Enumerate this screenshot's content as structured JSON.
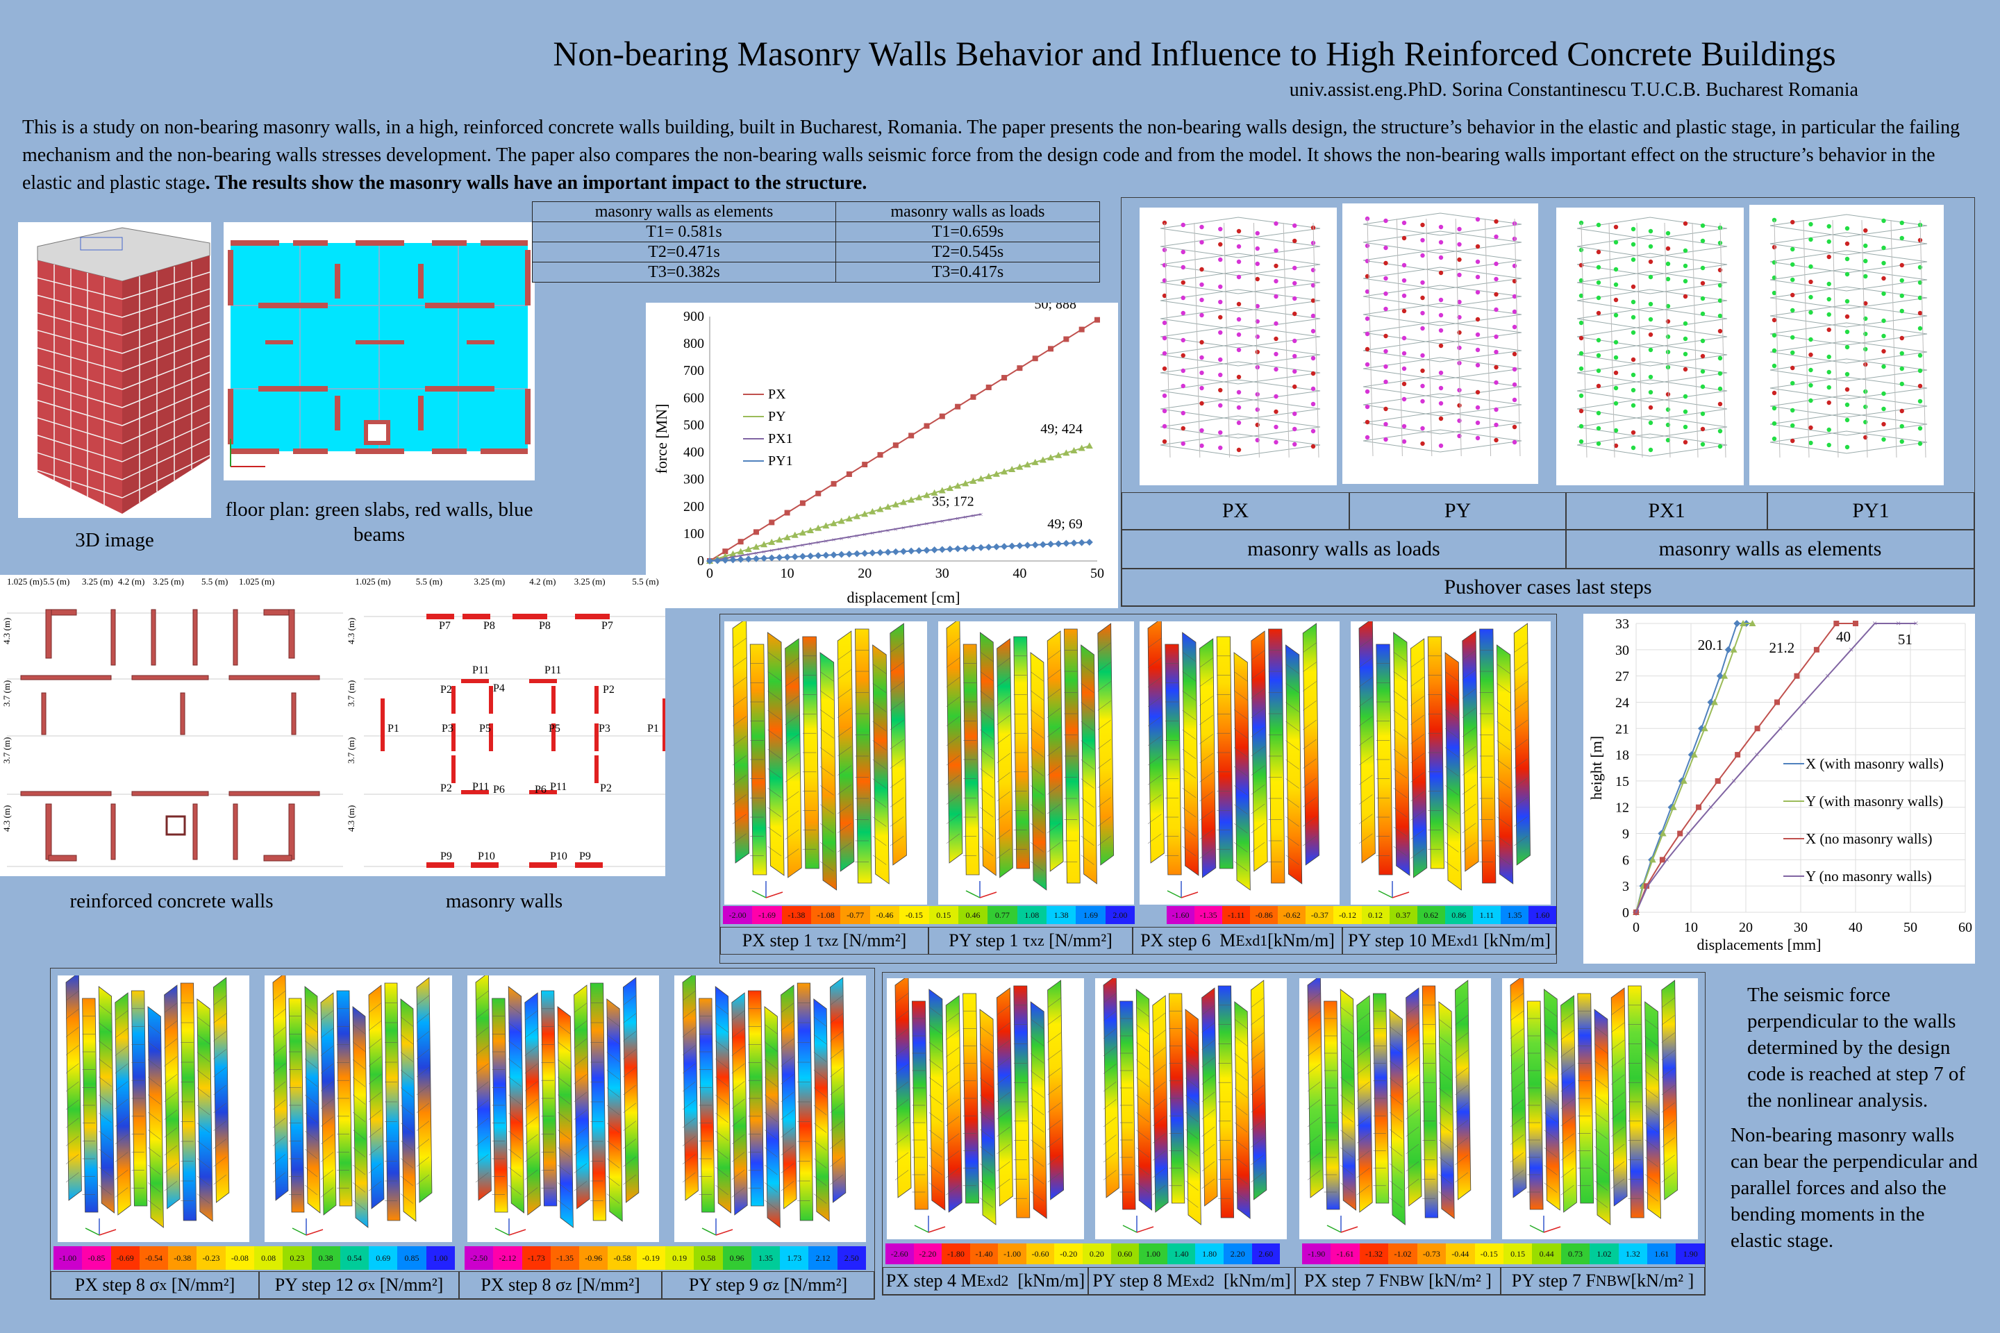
{
  "header": {
    "title": "Non-bearing Masonry Walls Behavior and Influence to High Reinforced Concrete Buildings",
    "author": "univ.assist.eng.PhD.  Sorina Constantinescu   T.U.C.B. Bucharest   Romania"
  },
  "abstract": {
    "text": "This is a study on non-bearing masonry walls, in a high, reinforced concrete walls building, built in Bucharest, Romania. The paper presents the non-bearing walls design, the structure’s behavior in the elastic and plastic stage, in particular the failing mechanism and the non-bearing walls stresses development. The paper also compares the non-bearing walls seismic force from the design code and from the model. It shows the non-bearing walls important effect on the structure’s behavior in the elastic and plastic stage",
    "bold": ". The results show the masonry walls have an important impact to the structure."
  },
  "figures": {
    "image3d_caption": "3D image",
    "floorplan_caption": "floor plan: green slabs, red walls, blue beams",
    "rc_walls_caption": "reinforced concrete walls",
    "masonry_walls_caption": "masonry walls"
  },
  "plan_dims": [
    "1.025 (m)",
    "5.5 (m)",
    "3.25 (m)",
    "4.2 (m)",
    "3.25 (m)",
    "5.5 (m)",
    "1.025 (m)"
  ],
  "plan_dims_masonry": [
    "1.025 (m)",
    "5.5 (m)",
    "3.25 (m)",
    "4.2 (m)",
    "3.25 (m)",
    "5.5 (m)"
  ],
  "plan_dims_vertical": [
    "4.3 (m)",
    "3.7 (m)",
    "3.7 (m)",
    "4.3 (m)"
  ],
  "masonry_labels": [
    "P7",
    "P8",
    "P8",
    "P7",
    "P11",
    "P11",
    "P2",
    "P4",
    "P2",
    "P1",
    "P3",
    "P5",
    "P5",
    "P3",
    "P1",
    "P2",
    "P11",
    "P6",
    "P6",
    "P11",
    "P2",
    "P9",
    "P10",
    "P10",
    "P9"
  ],
  "period_table": {
    "headers": [
      "masonry walls as elements",
      "masonry walls as loads"
    ],
    "rows": [
      [
        "T1= 0.581s",
        "T1=0.659s"
      ],
      [
        "T2=0.471s",
        "T2=0.545s"
      ],
      [
        "T3=0.382s",
        "T3=0.417s"
      ]
    ]
  },
  "pushover_labels": {
    "cases": [
      "PX",
      "PY",
      "PX1",
      "PY1"
    ],
    "groups": [
      "masonry  walls as loads",
      "masonry  walls as elements"
    ],
    "footer": "Pushover cases last steps"
  },
  "row1_captions": [
    "PX step 1 τxz [N/mm²]",
    "PY step 1 τxz [N/mm²]",
    "PX step 6  MExd1[kNm/m]",
    "PY step 10 MExd1 [kNm/m]"
  ],
  "row2a_captions": [
    "PX step 8 σx [N/mm²]",
    "PY step 12 σx [N/mm²]",
    "PX step 8 σz [N/mm²]",
    "PY step 9 σz [N/mm²]"
  ],
  "row2b_captions": [
    "PX step 4 MExd2  [kNm/m]",
    "PY step 8 MExd2  [kNm/m]",
    "PX step 7 FNBW [kN/m² ]",
    "PY step 7 FNBW[kN/m² ]"
  ],
  "scale_tau": [
    "-2.00",
    "-1.69",
    "-1.38",
    "-1.08",
    "-0.77",
    "-0.46",
    "-0.15",
    "0.15",
    "0.46",
    "0.77",
    "1.08",
    "1.38",
    "1.69",
    "2.00"
  ],
  "scale_m1": [
    "-1.60",
    "-1.35",
    "-1.11",
    "-0.86",
    "-0.62",
    "-0.37",
    "-0.12",
    "0.12",
    "0.37",
    "0.62",
    "0.86",
    "1.11",
    "1.35",
    "1.60"
  ],
  "scale_sx": [
    "-1.00",
    "-0.85",
    "-0.69",
    "-0.54",
    "-0.38",
    "-0.23",
    "-0.08",
    "0.08",
    "0.23",
    "0.38",
    "0.54",
    "0.69",
    "0.85",
    "1.00"
  ],
  "scale_sz": [
    "-2.50",
    "-2.12",
    "-1.73",
    "-1.35",
    "-0.96",
    "-0.58",
    "-0.19",
    "0.19",
    "0.58",
    "0.96",
    "1.35",
    "1.73",
    "2.12",
    "2.50"
  ],
  "scale_m2": [
    "-2.60",
    "-2.20",
    "-1.80",
    "-1.40",
    "-1.00",
    "-0.60",
    "-0.20",
    "0.20",
    "0.60",
    "1.00",
    "1.40",
    "1.80",
    "2.20",
    "2.60"
  ],
  "scale_fnbw": [
    "-1.90",
    "-1.61",
    "-1.32",
    "-1.02",
    "-0.73",
    "-0.44",
    "-0.15",
    "0.15",
    "0.44",
    "0.73",
    "1.02",
    "1.32",
    "1.61",
    "1.90"
  ],
  "notes": {
    "n1": "The seismic  force perpendicular to the walls determined by the design code is reached at step 7 of the nonlinear analysis.",
    "n2": "Non-bearing masonry walls can bear the perpendicular and parallel forces and also the bending moments  in the elastic stage."
  },
  "colors": {
    "background": "#95b3d7",
    "slab": "#00e5ff",
    "wall": "#c0504d",
    "px": "#c0504d",
    "py": "#9bbb59",
    "px1": "#8064a2",
    "py1": "#4f81bd"
  },
  "chart_data": [
    {
      "type": "line",
      "xlabel": "displacement [cm]",
      "ylabel": "force [MN]",
      "xlim": [
        0,
        50
      ],
      "ylim": [
        0,
        900
      ],
      "xticks": [
        0,
        10,
        20,
        30,
        40,
        50
      ],
      "yticks": [
        0,
        100,
        200,
        300,
        400,
        500,
        600,
        700,
        800,
        900
      ],
      "legend": "left",
      "series": [
        {
          "name": "PX",
          "color": "#c0504d",
          "marker": "square",
          "points": [
            [
              0,
              0
            ],
            [
              50,
              888
            ]
          ]
        },
        {
          "name": "PY",
          "color": "#9bbb59",
          "marker": "triangle",
          "points": [
            [
              0,
              0
            ],
            [
              49,
              424
            ]
          ]
        },
        {
          "name": "PX1",
          "color": "#8064a2",
          "marker": "x",
          "points": [
            [
              0,
              0
            ],
            [
              35,
              172
            ]
          ]
        },
        {
          "name": "PY1",
          "color": "#4f81bd",
          "marker": "diamond",
          "points": [
            [
              0,
              0
            ],
            [
              49,
              69
            ]
          ]
        }
      ],
      "annotations": [
        {
          "x": 50,
          "y": 888,
          "text": "50; 888"
        },
        {
          "x": 49,
          "y": 424,
          "text": "49; 424"
        },
        {
          "x": 35,
          "y": 172,
          "text": "35; 172"
        },
        {
          "x": 49,
          "y": 69,
          "text": "49; 69"
        }
      ]
    },
    {
      "type": "line",
      "xlabel": "displacements [mm]",
      "ylabel": "height [m]",
      "xlim": [
        0,
        60
      ],
      "ylim": [
        0,
        33
      ],
      "xticks": [
        0,
        10,
        20,
        30,
        40,
        50,
        60
      ],
      "yticks": [
        0,
        3,
        6,
        9,
        12,
        15,
        18,
        21,
        24,
        27,
        30,
        33
      ],
      "legend": "right",
      "series": [
        {
          "name": "X (with masonry walls)",
          "color": "#4f81bd",
          "marker": "diamond",
          "x": [
            0,
            1.2,
            2.8,
            4.6,
            6.4,
            8.3,
            10.1,
            11.9,
            13.6,
            15.3,
            16.8,
            18.4,
            20.1
          ],
          "y": [
            0,
            3,
            6,
            9,
            12,
            15,
            18,
            21,
            24,
            27,
            30,
            33,
            33
          ]
        },
        {
          "name": "Y (with masonry walls)",
          "color": "#9bbb59",
          "marker": "triangle",
          "x": [
            0,
            1.3,
            3.0,
            4.9,
            6.8,
            8.7,
            10.6,
            12.5,
            14.3,
            16.1,
            17.8,
            19.5,
            21.2
          ],
          "y": [
            0,
            3,
            6,
            9,
            12,
            15,
            18,
            21,
            24,
            27,
            30,
            33,
            33
          ]
        },
        {
          "name": "X (no masonry walls)",
          "color": "#c0504d",
          "marker": "square",
          "x": [
            0,
            1.9,
            4.8,
            8.0,
            11.4,
            14.9,
            18.5,
            22.1,
            25.7,
            29.3,
            32.9,
            36.5,
            40
          ],
          "y": [
            0,
            3,
            6,
            9,
            12,
            15,
            18,
            21,
            24,
            27,
            30,
            33,
            33
          ]
        },
        {
          "name": "Y (no masonry walls)",
          "color": "#8064a2",
          "marker": "x",
          "x": [
            0,
            2.1,
            5.6,
            9.5,
            13.6,
            17.8,
            22.0,
            26.3,
            30.6,
            34.9,
            39.2,
            43.5,
            47.8,
            51
          ],
          "y": [
            0,
            3,
            6,
            9,
            12,
            15,
            18,
            21,
            24,
            27,
            30,
            33,
            33,
            33
          ]
        }
      ],
      "annotations": [
        {
          "x": 20.1,
          "y": 33,
          "text": "20.1"
        },
        {
          "x": 21.2,
          "y": 33,
          "text": "21.2"
        },
        {
          "x": 40,
          "y": 33,
          "text": "40"
        },
        {
          "x": 51,
          "y": 33,
          "text": "51"
        }
      ]
    }
  ]
}
